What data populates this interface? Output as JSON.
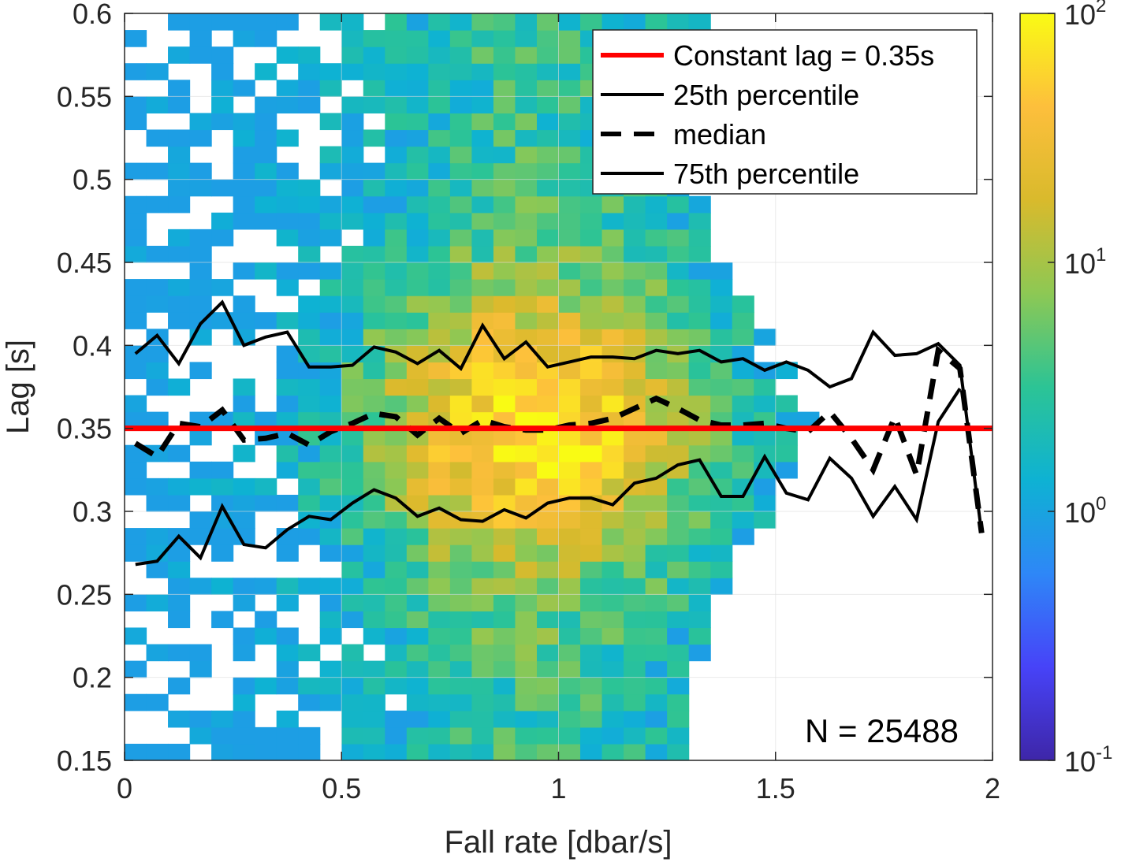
{
  "chart_data": {
    "type": "heatmap",
    "xlabel": "Fall rate [dbar/s]",
    "ylabel": "Lag [s]",
    "xlim": [
      0,
      2
    ],
    "ylim": [
      0.15,
      0.6
    ],
    "x_ticks": [
      "0",
      "0.5",
      "1",
      "1.5",
      "2"
    ],
    "y_ticks": [
      "0.15",
      "0.2",
      "0.25",
      "0.3",
      "0.35",
      "0.4",
      "0.45",
      "0.5",
      "0.55",
      "0.6"
    ],
    "grid": true,
    "bin_width_x": 0.05,
    "bin_width_y": 0.01,
    "colorbar": {
      "scale": "log",
      "range": [
        0.1,
        100
      ],
      "tick_labels": [
        {
          "base": "10",
          "exp": "2"
        },
        {
          "base": "10",
          "exp": "1"
        },
        {
          "base": "10",
          "exp": "0"
        },
        {
          "base": "10",
          "exp": "-1"
        }
      ],
      "colormap": [
        "#3e26a8",
        "#4743f8",
        "#2e87f7",
        "#0eb2d3",
        "#2cc495",
        "#8dc854",
        "#d9ba2c",
        "#fdbf3c",
        "#f9fb14"
      ]
    },
    "constant_lag": {
      "label": "Constant lag = 0.35s",
      "value": 0.35,
      "color": "#ff0000"
    },
    "fall_rate_bins": [
      0.025,
      0.075,
      0.125,
      0.175,
      0.225,
      0.275,
      0.325,
      0.375,
      0.425,
      0.475,
      0.525,
      0.575,
      0.625,
      0.675,
      0.725,
      0.775,
      0.825,
      0.875,
      0.925,
      0.975,
      1.025,
      1.075,
      1.125,
      1.175,
      1.225,
      1.275,
      1.325,
      1.375,
      1.425,
      1.475,
      1.525,
      1.575,
      1.625,
      1.675,
      1.725,
      1.775,
      1.825,
      1.875,
      1.925,
      1.975
    ],
    "series": [
      {
        "name": "25th percentile",
        "style": "solid",
        "values": [
          0.268,
          0.27,
          0.285,
          0.272,
          0.303,
          0.28,
          0.278,
          0.289,
          0.297,
          0.295,
          0.305,
          0.313,
          0.308,
          0.297,
          0.302,
          0.295,
          0.294,
          0.301,
          0.296,
          0.305,
          0.308,
          0.308,
          0.304,
          0.317,
          0.32,
          0.328,
          0.331,
          0.309,
          0.309,
          0.333,
          0.311,
          0.307,
          0.332,
          0.32,
          0.297,
          0.315,
          0.295,
          0.354,
          0.374,
          null
        ]
      },
      {
        "name": "median",
        "style": "dashed",
        "values": [
          0.341,
          0.333,
          0.353,
          0.351,
          0.361,
          0.343,
          0.344,
          0.347,
          0.34,
          0.348,
          0.353,
          0.359,
          0.357,
          0.346,
          0.356,
          0.347,
          0.355,
          0.351,
          0.349,
          0.349,
          0.352,
          0.353,
          0.356,
          0.362,
          0.368,
          0.362,
          0.355,
          0.352,
          0.352,
          0.353,
          0.35,
          0.348,
          0.36,
          0.344,
          0.325,
          0.357,
          0.322,
          0.397,
          0.386,
          0.287
        ]
      },
      {
        "name": "75th percentile",
        "style": "solid",
        "values": [
          0.395,
          0.406,
          0.389,
          0.413,
          0.426,
          0.4,
          0.405,
          0.408,
          0.387,
          0.387,
          0.388,
          0.399,
          0.396,
          0.389,
          0.397,
          0.386,
          0.412,
          0.392,
          0.402,
          0.387,
          0.39,
          0.393,
          0.393,
          0.392,
          0.397,
          0.395,
          0.397,
          0.39,
          0.392,
          0.385,
          0.39,
          0.385,
          0.375,
          0.38,
          0.408,
          0.394,
          0.395,
          0.401,
          0.388,
          0.287
        ]
      }
    ],
    "annotation": "N = 25488"
  }
}
